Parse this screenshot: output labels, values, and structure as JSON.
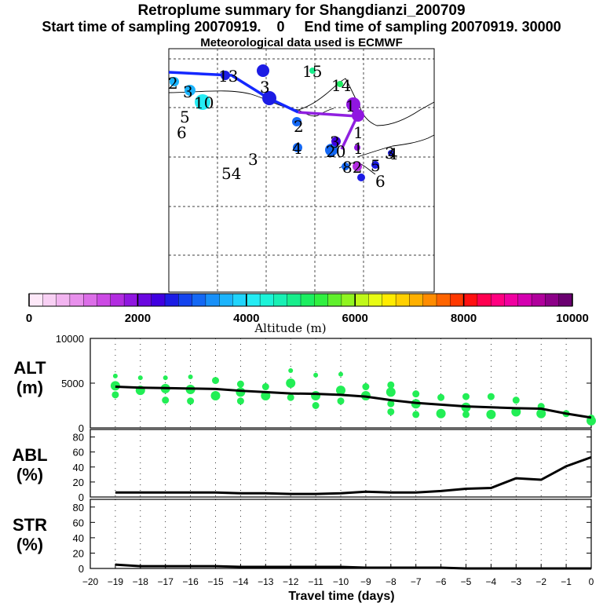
{
  "header": {
    "title": "Retroplume summary for Shangdianzi_200709",
    "subtitle": "Start time of sampling 20070919.    0     End time of sampling 20070919. 30000",
    "met_note": "Meteorological data used is ECMWF"
  },
  "colorbar": {
    "label": "Altitude (m)",
    "ticks": [
      "0",
      "2000",
      "4000",
      "6000",
      "8000",
      "10000"
    ],
    "colors": [
      "#fde8f8",
      "#f8d0f4",
      "#f2b4f0",
      "#e890ec",
      "#dc6ee8",
      "#cc4ae4",
      "#b22ce0",
      "#9016e0",
      "#6a08e0",
      "#4000e0",
      "#1c1ce4",
      "#1444ee",
      "#1468f4",
      "#1890f8",
      "#1cb4fc",
      "#20d4fc",
      "#24ecf4",
      "#1cf4d8",
      "#18f0b4",
      "#18ee8c",
      "#1cee60",
      "#30f040",
      "#60f02c",
      "#90f420",
      "#c0f818",
      "#e8fc14",
      "#ffec00",
      "#ffd000",
      "#ffb000",
      "#ff8c00",
      "#ff6400",
      "#ff3800",
      "#ff1010",
      "#ff0050",
      "#ff0080",
      "#f000a0",
      "#d400b0",
      "#b0009c",
      "#8c0088",
      "#6a0070"
    ]
  },
  "map": {
    "trajectory_color": "#1428ff",
    "trajectory_end_color": "#9020e0",
    "labels": [
      {
        "text": "13",
        "color": "#000000"
      },
      {
        "text": "15",
        "color": "#000000"
      },
      {
        "text": "14",
        "color": "#000000"
      },
      {
        "text": "2",
        "color": "#000000"
      },
      {
        "text": "3",
        "color": "#000000"
      },
      {
        "text": "10",
        "color": "#000000"
      },
      {
        "text": "5",
        "color": "#000000"
      },
      {
        "text": "6",
        "color": "#000000"
      },
      {
        "text": "3",
        "color": "#000000"
      },
      {
        "text": "2",
        "color": "#000000"
      },
      {
        "text": "1",
        "color": "#000000"
      },
      {
        "text": "1",
        "color": "#000000"
      },
      {
        "text": "4",
        "color": "#000000"
      },
      {
        "text": "3",
        "color": "#000000"
      },
      {
        "text": "54",
        "color": "#000000"
      },
      {
        "text": "3",
        "color": "#000000"
      },
      {
        "text": "20",
        "color": "#000000"
      },
      {
        "text": "1",
        "color": "#000000"
      },
      {
        "text": "4",
        "color": "#000000"
      },
      {
        "text": "3",
        "color": "#000000"
      },
      {
        "text": "82",
        "color": "#000000"
      },
      {
        "text": "5",
        "color": "#000000"
      },
      {
        "text": "6",
        "color": "#000000"
      }
    ]
  },
  "chart_data": [
    {
      "type": "scatter",
      "panel": "ALT",
      "ylabel": "ALT\n(m)",
      "ylim": [
        0,
        10000
      ],
      "ytick_labels": [
        "10000",
        "5000",
        "0"
      ],
      "line": {
        "x": [
          -19,
          -18,
          -17,
          -16,
          -15,
          -14,
          -13,
          -12,
          -11,
          -10,
          -9,
          -8,
          -7,
          -6,
          -5,
          -4,
          -3,
          -2,
          -1,
          0
        ],
        "y": [
          4600,
          4500,
          4450,
          4400,
          4350,
          4150,
          4000,
          3850,
          3800,
          3700,
          3500,
          3100,
          2800,
          2600,
          2400,
          2300,
          2200,
          2150,
          1600,
          1150
        ]
      },
      "points": [
        {
          "x": -19,
          "y": [
            5800,
            4700,
            3700
          ]
        },
        {
          "x": -18,
          "y": [
            5600,
            4200
          ]
        },
        {
          "x": -17,
          "y": [
            5600,
            4400,
            3100
          ]
        },
        {
          "x": -16,
          "y": [
            5700,
            4300,
            3000
          ]
        },
        {
          "x": -15,
          "y": [
            5300,
            3600
          ]
        },
        {
          "x": -14,
          "y": [
            4900,
            4000,
            3000
          ]
        },
        {
          "x": -13,
          "y": [
            4600,
            3600
          ]
        },
        {
          "x": -12,
          "y": [
            6400,
            5000,
            3400
          ]
        },
        {
          "x": -11,
          "y": [
            5900,
            3600,
            2500
          ]
        },
        {
          "x": -10,
          "y": [
            6000,
            4200,
            3000
          ]
        },
        {
          "x": -9,
          "y": [
            4600,
            3600
          ]
        },
        {
          "x": -8,
          "y": [
            4800,
            4000,
            2700,
            1800
          ]
        },
        {
          "x": -7,
          "y": [
            3800,
            2700,
            1500
          ]
        },
        {
          "x": -6,
          "y": [
            3400,
            1600
          ]
        },
        {
          "x": -5,
          "y": [
            3500,
            2300,
            1500
          ]
        },
        {
          "x": -4,
          "y": [
            3500,
            1500
          ]
        },
        {
          "x": -3,
          "y": [
            3100,
            1800
          ]
        },
        {
          "x": -2,
          "y": [
            2400,
            1600
          ]
        },
        {
          "x": -1,
          "y": [
            1600
          ]
        },
        {
          "x": 0,
          "y": [
            1100,
            800
          ]
        }
      ],
      "color": "#22ee55"
    },
    {
      "type": "line",
      "panel": "ABL",
      "ylabel": "ABL\n(%)",
      "ylim": [
        0,
        90
      ],
      "ytick_labels": [
        "80",
        "60",
        "40",
        "20",
        "0"
      ],
      "x": [
        -19,
        -18,
        -17,
        -16,
        -15,
        -14,
        -13,
        -12,
        -11,
        -10,
        -9,
        -8,
        -7,
        -6,
        -5,
        -4,
        -3,
        -2,
        -1,
        0
      ],
      "y": [
        6,
        6,
        6,
        6,
        6,
        5,
        5,
        4,
        4,
        5,
        7,
        6,
        6,
        8,
        11,
        12,
        25,
        23,
        41,
        53
      ]
    },
    {
      "type": "line",
      "panel": "STR",
      "ylabel": "STR\n(%)",
      "ylim": [
        0,
        90
      ],
      "ytick_labels": [
        "80",
        "60",
        "40",
        "20",
        "0"
      ],
      "x": [
        -19,
        -18,
        -17,
        -16,
        -15,
        -14,
        -13,
        -12,
        -11,
        -10,
        -9,
        -8,
        -7,
        -6,
        -5,
        -4,
        -3,
        -2,
        -1,
        0
      ],
      "y": [
        5,
        3,
        3,
        3,
        3,
        2,
        2,
        2,
        2,
        2,
        1,
        1,
        1,
        1,
        0,
        0,
        0,
        0,
        0,
        0
      ]
    }
  ],
  "x_axis": {
    "xlabel": "Travel time (days)",
    "tick_labels": [
      "−20",
      "−19",
      "−18",
      "−17",
      "−16",
      "−15",
      "−14",
      "−13",
      "−12",
      "−11",
      "−10",
      "−9",
      "−8",
      "−7",
      "−6",
      "−5",
      "−4",
      "−3",
      "−2",
      "−1",
      "0"
    ]
  }
}
